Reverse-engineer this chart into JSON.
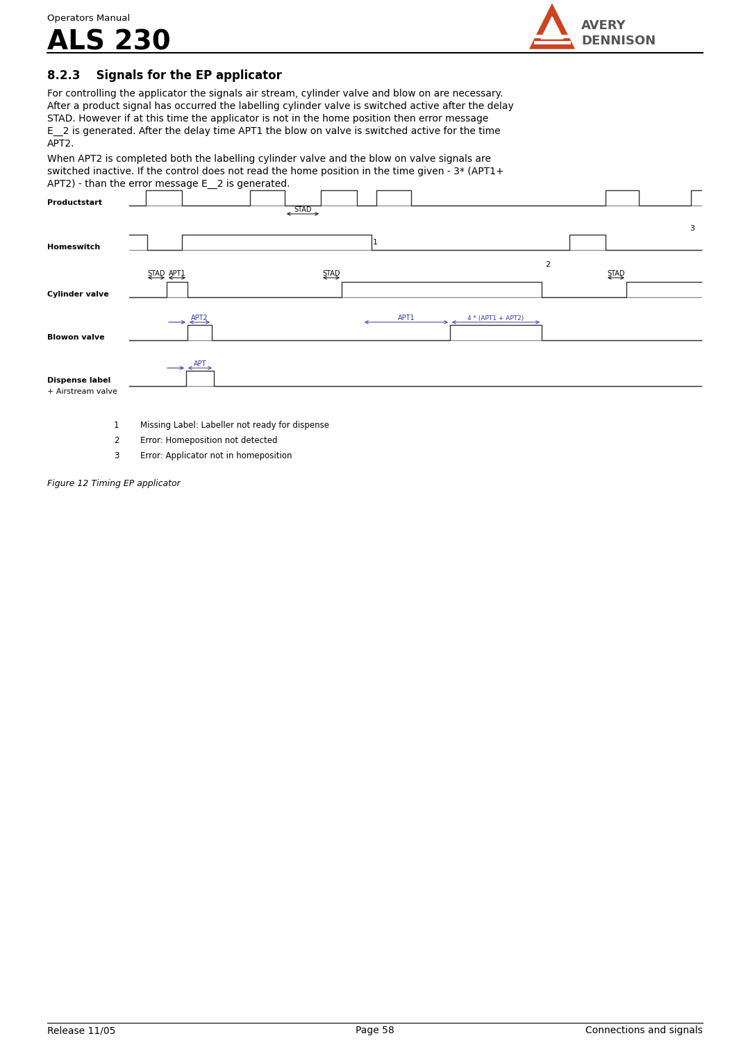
{
  "page_title_small": "Operators Manual",
  "page_title_large": "ALS 230",
  "section_title": "8.2.3    Signals for the EP applicator",
  "body_text_para1": [
    "For controlling the applicator the signals air stream, cylinder valve and blow on are necessary.",
    "After a product signal has occurred the labelling cylinder valve is switched active after the delay",
    "STAD. However if at this time the applicator is not in the home position then error message",
    "E__2 is generated. After the delay time APT1 the blow on valve is switched active for the time",
    "APT2."
  ],
  "body_text_para2": [
    "When APT2 is completed both the labelling cylinder valve and the blow on valve signals are",
    "switched inactive. If the control does not read the home position in the time given - 3* (APT1+",
    "APT2) - than the error message E__2 is generated."
  ],
  "figure_caption": "Figure 12 Timing EP applicator",
  "legend_items": [
    [
      "1",
      "Missing Label: Labeller not ready for dispense"
    ],
    [
      "2",
      "Error: Homeposition not detected"
    ],
    [
      "3",
      "Error: Applicator not in homeposition"
    ]
  ],
  "footer_left": "Release 11/05",
  "footer_center": "Page 58",
  "footer_right": "Connections and signals",
  "signal_labels": [
    "Productstart",
    "Homeswitch",
    "Cylinder valve",
    "Blowon valve",
    "Dispense label\n+ Airstream valve"
  ],
  "bg_color": "#ffffff",
  "line_color": "#000000",
  "signal_line_color": "#888888",
  "anno_color": "#3333aa",
  "logo_color": "#cc4422",
  "logo_text_color": "#555555"
}
